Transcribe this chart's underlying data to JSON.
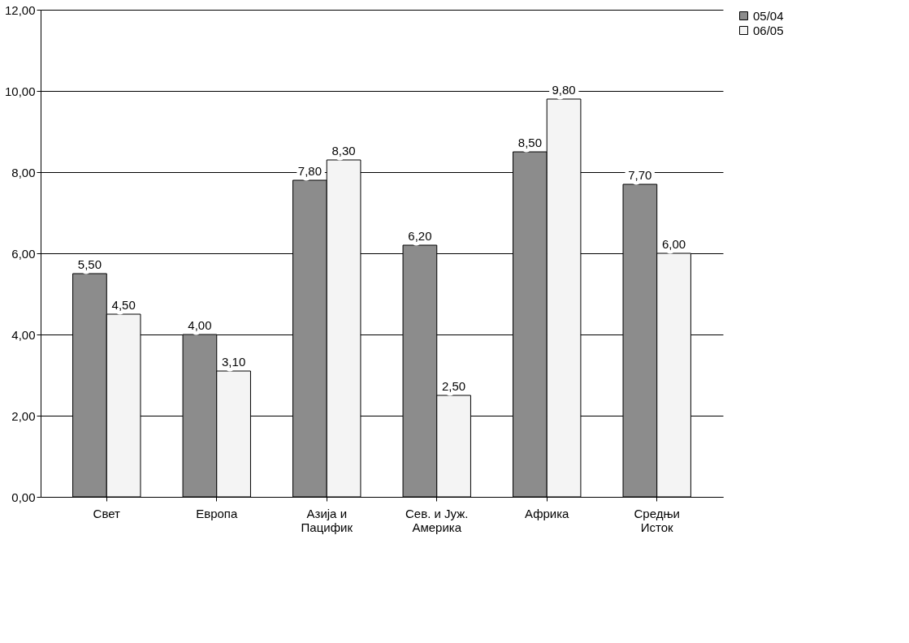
{
  "chart_data": {
    "type": "bar",
    "categories": [
      "Свет",
      "Европа",
      "Азија и Пацифик",
      "Сев. и Јуж. Америка",
      "Африка",
      "Средњи Исток"
    ],
    "series": [
      {
        "name": "05/04",
        "color": "#8c8c8c",
        "values": [
          5.5,
          4.0,
          7.8,
          6.2,
          8.5,
          7.7
        ],
        "value_labels": [
          "5,50",
          "4,00",
          "7,80",
          "6,20",
          "8,50",
          "7,70"
        ]
      },
      {
        "name": "06/05",
        "color": "#f4f4f4",
        "values": [
          4.5,
          3.1,
          8.3,
          2.5,
          9.8,
          6.0
        ],
        "value_labels": [
          "4,50",
          "3,10",
          "8,30",
          "2,50",
          "9,80",
          "6,00"
        ]
      }
    ],
    "ylim": [
      0,
      12
    ],
    "yticks": [
      {
        "value": 0,
        "label": "0,00"
      },
      {
        "value": 2,
        "label": "2,00"
      },
      {
        "value": 4,
        "label": "4,00"
      },
      {
        "value": 6,
        "label": "6,00"
      },
      {
        "value": 8,
        "label": "8,00"
      },
      {
        "value": 10,
        "label": "10,00"
      },
      {
        "value": 12,
        "label": "12,00"
      }
    ],
    "grid": "y",
    "legend": "right"
  }
}
